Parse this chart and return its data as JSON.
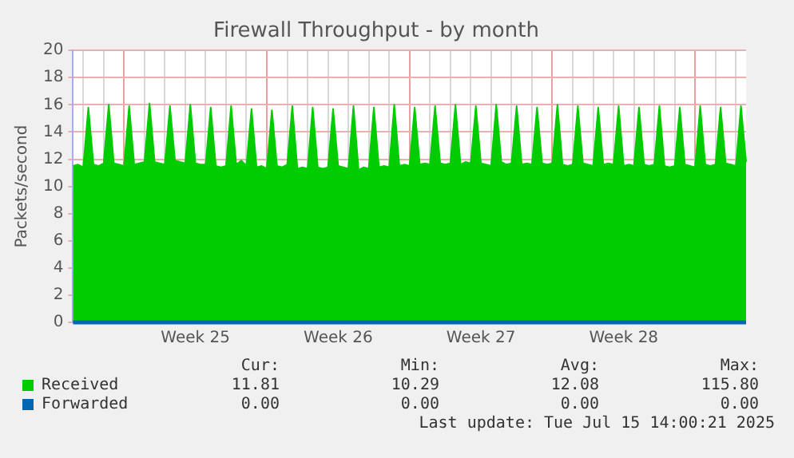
{
  "chart_data": {
    "type": "area",
    "title": "Firewall Throughput - by month",
    "ylabel": "Packets/second",
    "categories": [
      null,
      null,
      null,
      null,
      null,
      null,
      null,
      null,
      null,
      null,
      null,
      null,
      null,
      null,
      null,
      null,
      null,
      null,
      null,
      null,
      null,
      null,
      null,
      null,
      "Week 25",
      null,
      null,
      null,
      null,
      null,
      null,
      null,
      null,
      null,
      null,
      null,
      null,
      null,
      null,
      null,
      null,
      null,
      null,
      null,
      null,
      null,
      null,
      null,
      null,
      null,
      null,
      null,
      "Week 26",
      null,
      null,
      null,
      null,
      null,
      null,
      null,
      null,
      null,
      null,
      null,
      null,
      null,
      null,
      null,
      null,
      null,
      null,
      null,
      null,
      null,
      null,
      null,
      null,
      null,
      null,
      null,
      "Week 27",
      null,
      null,
      null,
      null,
      null,
      null,
      null,
      null,
      null,
      null,
      null,
      null,
      null,
      null,
      null,
      null,
      null,
      null,
      null,
      null,
      null,
      null,
      null,
      null,
      null,
      null,
      null,
      "Week 28",
      null,
      null,
      null,
      null,
      null,
      null,
      null,
      null,
      null,
      null,
      null,
      null,
      null,
      null,
      null,
      null,
      null,
      null,
      null,
      null,
      null,
      null,
      null,
      null
    ],
    "series": [
      {
        "name": "Received",
        "color": "#00cc00",
        "values": [
          11.5,
          11.6,
          11.4,
          15.8,
          11.6,
          11.5,
          11.7,
          16.0,
          11.7,
          11.6,
          11.5,
          15.9,
          11.6,
          11.7,
          11.8,
          16.1,
          11.8,
          11.7,
          11.6,
          15.9,
          11.9,
          11.8,
          11.7,
          16.0,
          11.7,
          11.6,
          11.6,
          15.8,
          11.5,
          11.4,
          11.5,
          15.9,
          11.6,
          11.9,
          11.5,
          15.7,
          11.4,
          11.5,
          11.3,
          15.6,
          11.5,
          11.4,
          11.6,
          15.9,
          11.3,
          11.4,
          11.3,
          15.8,
          11.4,
          11.3,
          11.4,
          15.7,
          11.5,
          11.4,
          11.3,
          15.9,
          11.2,
          11.4,
          11.3,
          15.8,
          11.4,
          11.5,
          11.4,
          16.0,
          11.5,
          11.6,
          11.5,
          15.8,
          11.6,
          11.7,
          11.6,
          15.9,
          11.7,
          11.6,
          11.7,
          16.0,
          11.6,
          11.8,
          11.7,
          15.9,
          11.7,
          11.6,
          11.5,
          16.0,
          11.8,
          11.6,
          11.7,
          15.9,
          11.6,
          11.7,
          11.6,
          15.8,
          11.7,
          11.6,
          11.7,
          16.0,
          11.6,
          11.5,
          11.6,
          15.9,
          11.7,
          11.6,
          11.5,
          15.8,
          11.6,
          11.7,
          11.6,
          15.9,
          11.5,
          11.6,
          11.5,
          15.8,
          11.6,
          11.5,
          11.6,
          15.9,
          11.5,
          11.4,
          11.5,
          15.8,
          11.6,
          11.5,
          11.4,
          15.9,
          11.6,
          11.5,
          11.6,
          15.8,
          11.7,
          11.6,
          11.5,
          15.9,
          11.8
        ]
      },
      {
        "name": "Forwarded",
        "type": "line",
        "color": "#0066b3",
        "values": [
          0,
          0,
          0,
          0,
          0,
          0,
          0,
          0,
          0,
          0,
          0,
          0,
          0,
          0,
          0,
          0,
          0,
          0,
          0,
          0,
          0,
          0,
          0,
          0,
          0,
          0,
          0,
          0,
          0,
          0,
          0,
          0,
          0,
          0,
          0,
          0,
          0,
          0,
          0,
          0,
          0,
          0,
          0,
          0,
          0,
          0,
          0,
          0,
          0,
          0,
          0,
          0,
          0,
          0,
          0,
          0,
          0,
          0,
          0,
          0,
          0,
          0,
          0,
          0,
          0,
          0,
          0,
          0,
          0,
          0,
          0,
          0,
          0,
          0,
          0,
          0,
          0,
          0,
          0,
          0,
          0,
          0,
          0,
          0,
          0,
          0,
          0,
          0,
          0,
          0,
          0,
          0,
          0,
          0,
          0,
          0,
          0,
          0,
          0,
          0,
          0,
          0,
          0,
          0,
          0,
          0,
          0,
          0,
          0,
          0,
          0,
          0,
          0,
          0,
          0,
          0,
          0,
          0,
          0,
          0,
          0,
          0,
          0,
          0,
          0,
          0,
          0,
          0,
          0,
          0,
          0,
          0,
          0
        ]
      }
    ],
    "ylim": [
      0,
      20
    ],
    "yticks": [
      0,
      2,
      4,
      6,
      8,
      10,
      12,
      14,
      16,
      18,
      20
    ],
    "grid": true,
    "marker": "none",
    "legend": "bottom",
    "annotations": [
      "Cur:",
      "Min:",
      "Avg:",
      "Max:",
      "11.81",
      "10.29",
      "12.08",
      "115.80",
      "0.00",
      "0.00",
      "0.00",
      "0.00",
      "Last update: Tue Jul 15 14:00:21 2025"
    ]
  }
}
